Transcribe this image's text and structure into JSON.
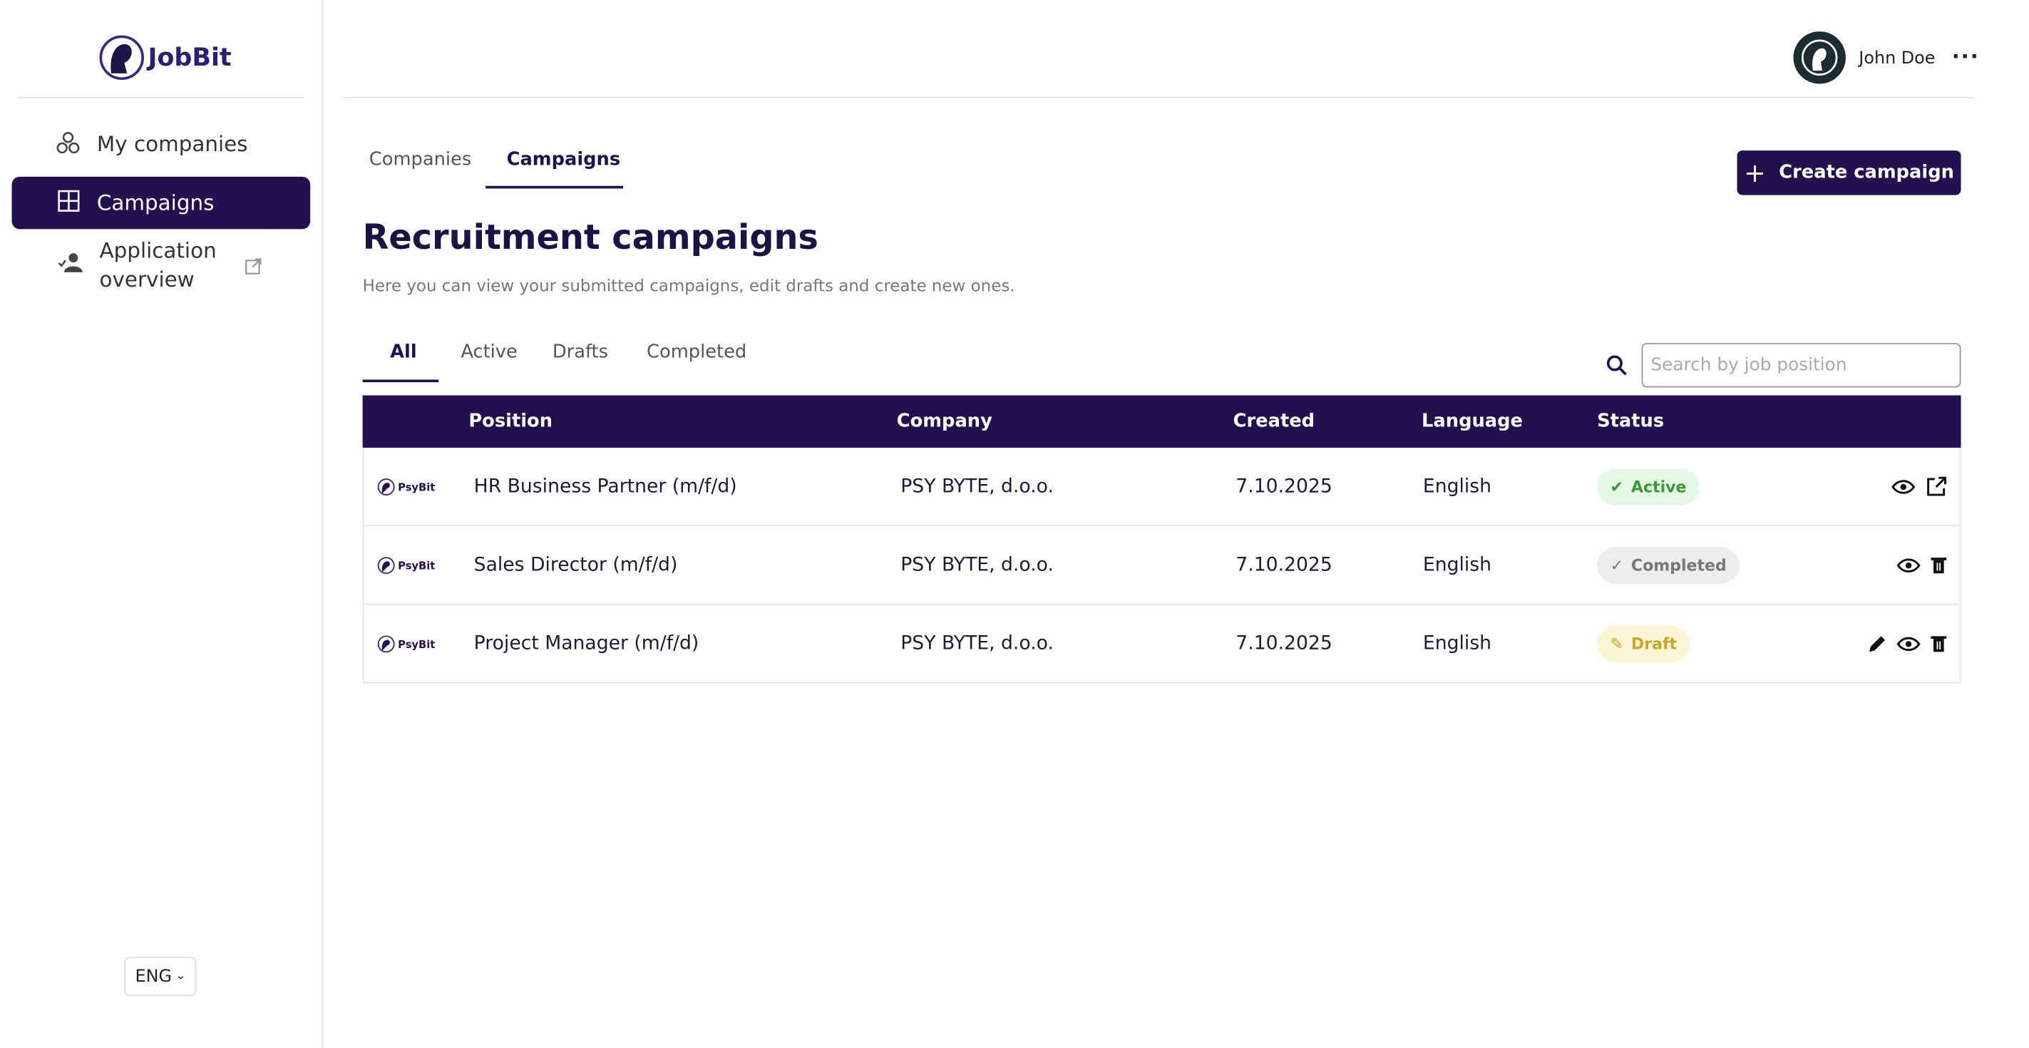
{
  "sidebar": {
    "logo": "JobBit",
    "nav": [
      {
        "label": "My companies"
      },
      {
        "label": "Campaigns"
      },
      {
        "label": "Application overview"
      }
    ],
    "language": "ENG"
  },
  "header": {
    "user": "John Doe"
  },
  "tabs": [
    "Companies",
    "Campaigns"
  ],
  "create_button": "Create campaign",
  "title": "Recruitment campaigns",
  "subtitle": "Here you can view your submitted campaigns, edit drafts and create new ones.",
  "filters": [
    "All",
    "Active",
    "Drafts",
    "Completed"
  ],
  "search_placeholder": "Search by job position",
  "table": {
    "headers": [
      "Position",
      "Company",
      "Created",
      "Language",
      "Status"
    ],
    "rows": [
      {
        "logo": "PsyBit",
        "position": "HR Business Partner  (m/f/d)",
        "company": "PSY BYTE, d.o.o.",
        "created": "7.10.2025",
        "language": "English",
        "status": "Active"
      },
      {
        "logo": "PsyBit",
        "position": "Sales Director (m/f/d)",
        "company": "PSY BYTE, d.o.o.",
        "created": "7.10.2025",
        "language": "English",
        "status": "Completed"
      },
      {
        "logo": "PsyBit",
        "position": "Project Manager (m/f/d)",
        "company": "PSY BYTE, d.o.o.",
        "created": "7.10.2025",
        "language": "English",
        "status": "Draft"
      }
    ]
  }
}
